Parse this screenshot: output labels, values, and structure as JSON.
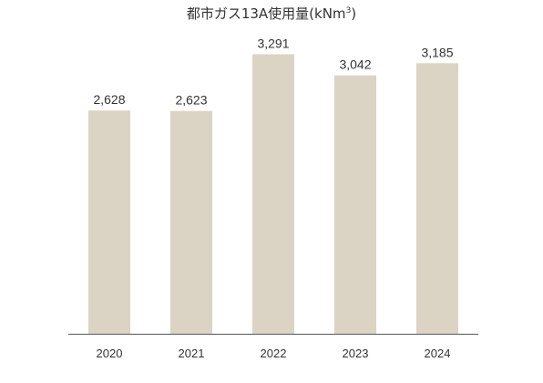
{
  "chart_data": {
    "type": "bar",
    "title": {
      "main": "都市ガス13A使用量(kNm",
      "superscript": "3",
      "close": ")"
    },
    "categories": [
      "2020",
      "2021",
      "2022",
      "2023",
      "2024"
    ],
    "values": [
      2628,
      2623,
      3291,
      3042,
      3185
    ],
    "value_labels": [
      "2,628",
      "2,623",
      "3,291",
      "3,042",
      "3,185"
    ],
    "ylim": [
      0,
      3500
    ],
    "xlabel": "",
    "ylabel": "",
    "grid": false,
    "legend": "none",
    "colors": {
      "bar": "#dbd3c4",
      "axis": "#595959",
      "text": "#333333"
    }
  }
}
